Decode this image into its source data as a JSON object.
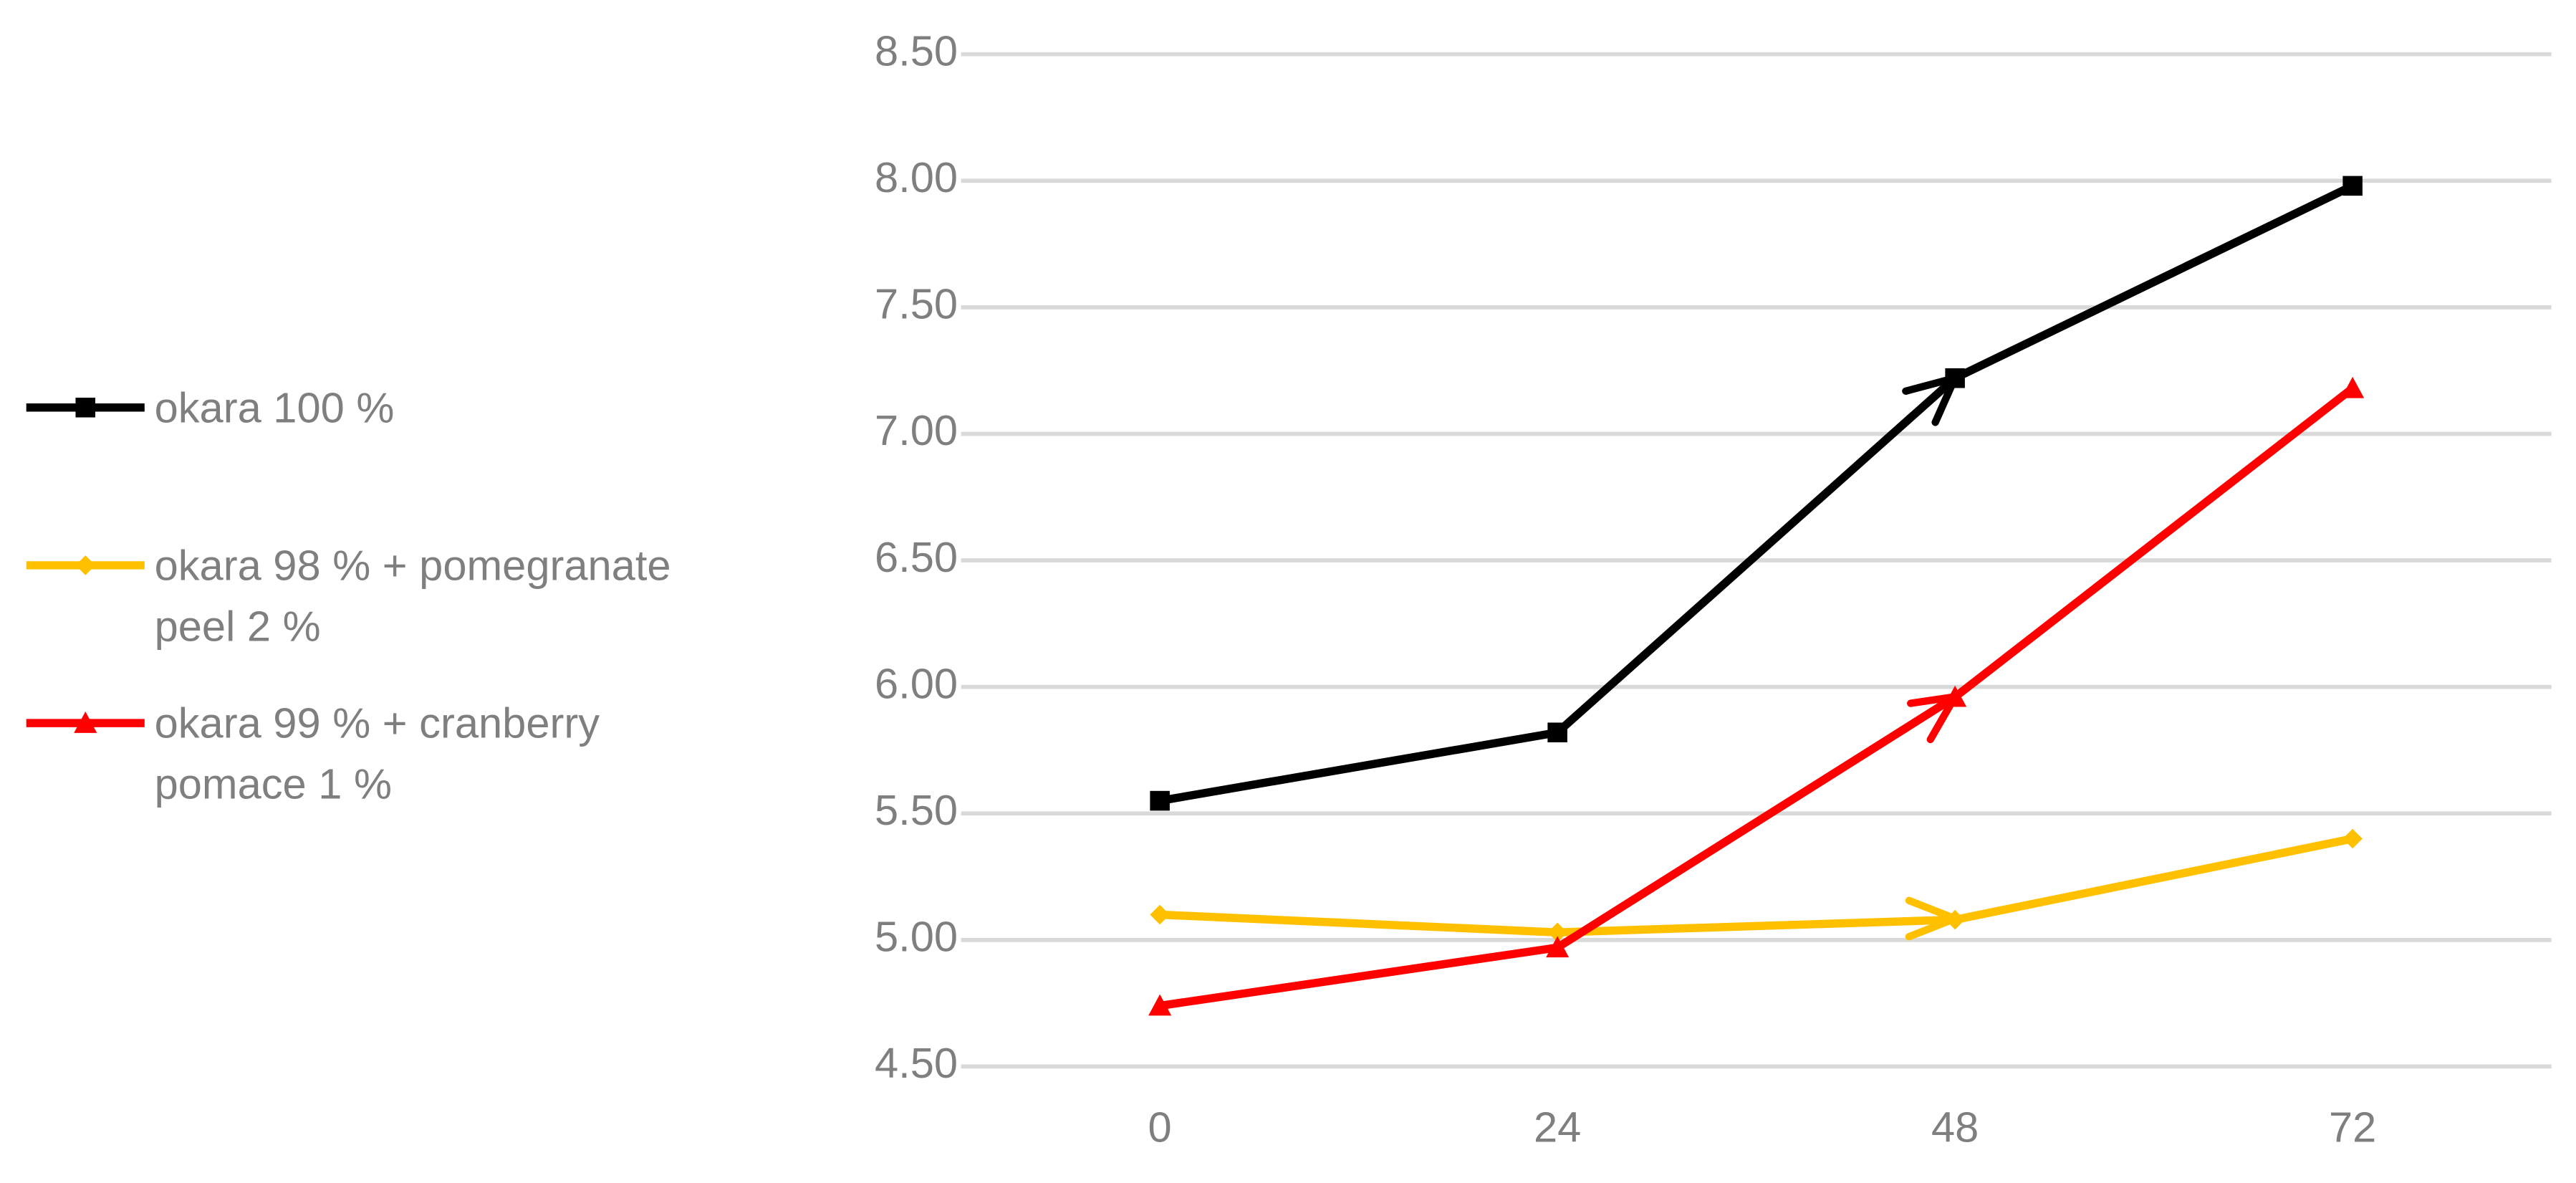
{
  "chart_data": {
    "type": "line",
    "categories": [
      "0",
      "24",
      "48",
      "72"
    ],
    "series": [
      {
        "name": "okara 100 %",
        "color": "#000000",
        "marker": "square",
        "values": [
          5.55,
          5.82,
          7.22,
          7.98
        ]
      },
      {
        "name": "okara 98 % + pomegranate peel 2 %",
        "color": "#FFC000",
        "marker": "diamond",
        "values": [
          5.1,
          5.03,
          5.08,
          5.4
        ]
      },
      {
        "name": "okara 99 % + cranberry pomace 1 %",
        "color": "#FF0000",
        "marker": "triangle",
        "values": [
          4.74,
          4.97,
          5.96,
          7.18
        ]
      }
    ],
    "ylim": [
      4.5,
      8.5
    ],
    "yticks": [
      {
        "value": 4.5,
        "label": "4.50"
      },
      {
        "value": 5,
        "label": "5.00"
      },
      {
        "value": 5.5,
        "label": "5.50"
      },
      {
        "value": 6,
        "label": "6.00"
      },
      {
        "value": 6.5,
        "label": "6.50"
      },
      {
        "value": 7,
        "label": "7.00"
      },
      {
        "value": 7.5,
        "label": "7.50"
      },
      {
        "value": 8,
        "label": "8.00"
      },
      {
        "value": 8.5,
        "label": "8.50"
      }
    ],
    "grid": true,
    "legend": "left"
  }
}
